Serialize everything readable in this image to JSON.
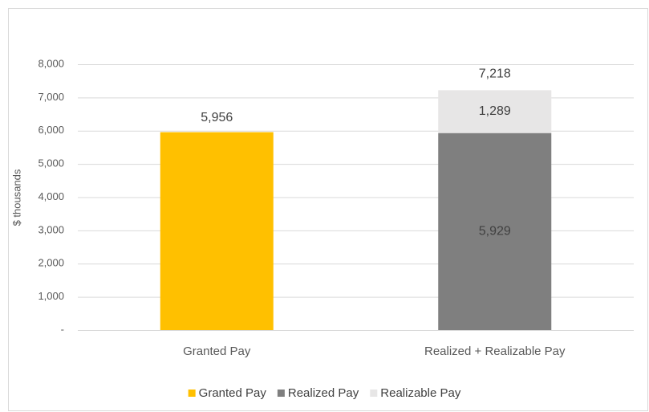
{
  "chart_data": {
    "type": "stacked_bar",
    "categories": [
      "Granted Pay",
      "Realized + Realizable Pay"
    ],
    "series": [
      {
        "name": "Granted Pay",
        "color": "#FFC000",
        "values": [
          5956,
          null
        ],
        "value_labels": [
          "5,956",
          null
        ]
      },
      {
        "name": "Realized Pay",
        "color": "#7F7F7F",
        "values": [
          null,
          5929
        ],
        "value_labels": [
          null,
          "5,929"
        ]
      },
      {
        "name": "Realizable Pay",
        "color": "#E7E6E6",
        "values": [
          null,
          1289
        ],
        "value_labels": [
          null,
          "1,289"
        ]
      }
    ],
    "totals": [
      null,
      7218
    ],
    "total_labels": [
      null,
      "7,218"
    ],
    "ylabel": "$ thousands",
    "ylim": [
      0,
      8000
    ],
    "yticks": [
      {
        "value": 0,
        "label": "-"
      },
      {
        "value": 1000,
        "label": "1,000"
      },
      {
        "value": 2000,
        "label": "2,000"
      },
      {
        "value": 3000,
        "label": "3,000"
      },
      {
        "value": 4000,
        "label": "4,000"
      },
      {
        "value": 5000,
        "label": "5,000"
      },
      {
        "value": 6000,
        "label": "6,000"
      },
      {
        "value": 7000,
        "label": "7,000"
      },
      {
        "value": 8000,
        "label": "8,000"
      }
    ],
    "grid": true,
    "legend": "bottom"
  }
}
